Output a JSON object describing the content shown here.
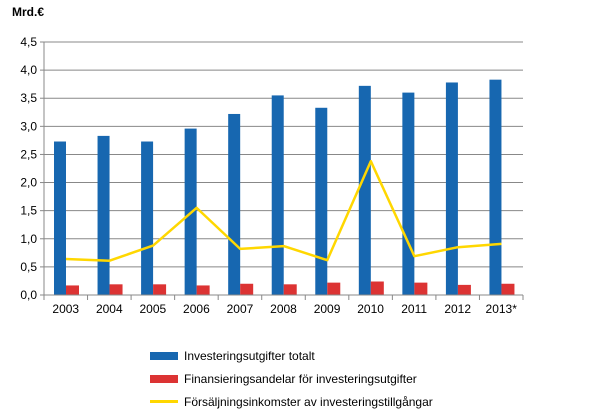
{
  "chart_data": {
    "type": "bar",
    "unit_label": "Mrd.€",
    "categories": [
      "2003",
      "2004",
      "2005",
      "2006",
      "2007",
      "2008",
      "2009",
      "2010",
      "2011",
      "2012",
      "2013*"
    ],
    "ylim": [
      0,
      4.5
    ],
    "yticks": [
      "0,0",
      "0,5",
      "1,0",
      "1,5",
      "2,0",
      "2,5",
      "3,0",
      "3,5",
      "4,0",
      "4,5"
    ],
    "grid": true,
    "legend_position": "bottom",
    "series": [
      {
        "name": "Investeringsutgifter totalt",
        "type": "bar",
        "color": "#1767b0",
        "values": [
          2.73,
          2.83,
          2.73,
          2.96,
          3.22,
          3.55,
          3.33,
          3.72,
          3.6,
          3.78,
          3.83
        ]
      },
      {
        "name": "Finansieringsandelar för investeringsutgifter",
        "type": "bar",
        "color": "#dc3333",
        "values": [
          0.17,
          0.19,
          0.19,
          0.17,
          0.2,
          0.19,
          0.22,
          0.24,
          0.22,
          0.18,
          0.2
        ]
      },
      {
        "name": "Försäljningsinkomster av investeringstillgångar",
        "type": "line",
        "color": "#ffd700",
        "values": [
          0.64,
          0.61,
          0.88,
          1.55,
          0.82,
          0.87,
          0.62,
          2.38,
          0.69,
          0.85,
          0.91
        ]
      }
    ]
  }
}
